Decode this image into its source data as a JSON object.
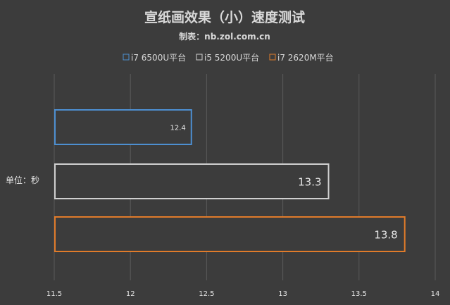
{
  "chart_data": {
    "type": "bar",
    "orientation": "horizontal",
    "title": "宣纸画效果（小）速度测试",
    "subtitle": "制表：nb.zol.com.cn",
    "ylabel": "单位：秒",
    "xlim": [
      11.5,
      14
    ],
    "x_ticks": [
      "11.5",
      "12",
      "12.5",
      "13",
      "13.5",
      "14"
    ],
    "x_tick_values": [
      11.5,
      12,
      12.5,
      13,
      13.5,
      14
    ],
    "legend_position": "top",
    "grid": true,
    "series": [
      {
        "name": "i7 6500U平台",
        "value": 12.4,
        "label": "12.4",
        "color": "#4d8fd1"
      },
      {
        "name": "i5 5200U平台",
        "value": 13.3,
        "label": "13.3",
        "color": "#cfcfcf"
      },
      {
        "name": "i7 2620M平台",
        "value": 13.8,
        "label": "13.8",
        "color": "#e07b2a"
      }
    ]
  }
}
